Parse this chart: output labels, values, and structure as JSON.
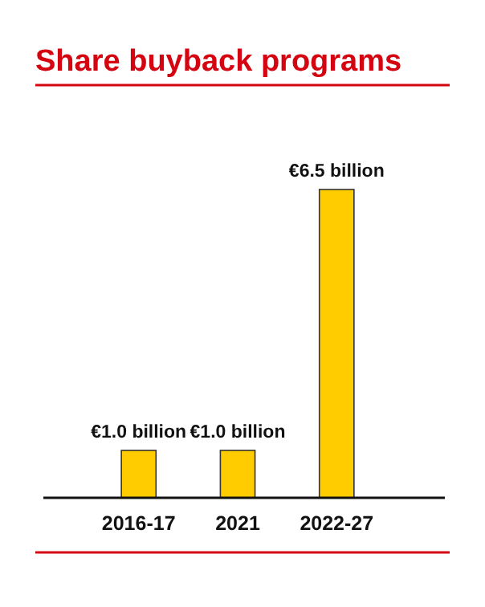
{
  "chart_data": {
    "type": "bar",
    "title": "Share buyback programs",
    "categories": [
      "2016-17",
      "2021",
      "2022-27"
    ],
    "values": [
      1.0,
      1.0,
      6.5
    ],
    "value_labels": [
      "€1.0 billion",
      "€1.0 billion",
      "€6.5 billion"
    ],
    "color": "#ffcc00"
  }
}
